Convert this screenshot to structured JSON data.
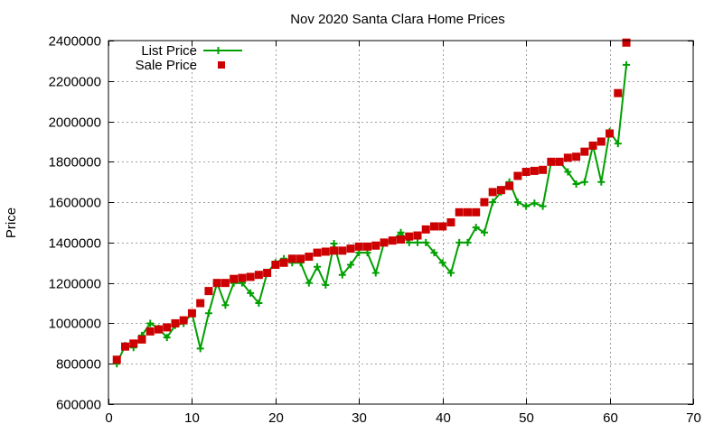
{
  "chart_data": {
    "type": "line",
    "title": "Nov 2020 Santa Clara Home Prices",
    "xlabel": "",
    "ylabel": "Price",
    "xlim": [
      0,
      70
    ],
    "ylim": [
      600000,
      2400000
    ],
    "xticks": [
      0,
      10,
      20,
      30,
      40,
      50,
      60,
      70
    ],
    "yticks": [
      600000,
      800000,
      1000000,
      1200000,
      1400000,
      1600000,
      1800000,
      2000000,
      2200000,
      2400000
    ],
    "grid": true,
    "legend_position": "top-left",
    "x": [
      1,
      2,
      3,
      4,
      5,
      6,
      7,
      8,
      9,
      10,
      11,
      12,
      13,
      14,
      15,
      16,
      17,
      18,
      19,
      20,
      21,
      22,
      23,
      24,
      25,
      26,
      27,
      28,
      29,
      30,
      31,
      32,
      33,
      34,
      35,
      36,
      37,
      38,
      39,
      40,
      41,
      42,
      43,
      44,
      45,
      46,
      47,
      48,
      49,
      50,
      51,
      52,
      53,
      54,
      55,
      56,
      57,
      58,
      59,
      60,
      61,
      62
    ],
    "series": [
      {
        "name": "List Price",
        "style": "linespoints",
        "color": "#00a000",
        "values": [
          800000,
          890000,
          880000,
          940000,
          1000000,
          975000,
          930000,
          990000,
          1000000,
          1050000,
          875000,
          1050000,
          1200000,
          1090000,
          1200000,
          1200000,
          1150000,
          1100000,
          1250000,
          1300000,
          1320000,
          1300000,
          1300000,
          1200000,
          1280000,
          1190000,
          1395000,
          1240000,
          1290000,
          1350000,
          1350000,
          1250000,
          1400000,
          1410000,
          1450000,
          1400000,
          1400000,
          1400000,
          1350000,
          1300000,
          1250000,
          1400000,
          1400000,
          1475000,
          1450000,
          1600000,
          1650000,
          1700000,
          1600000,
          1580000,
          1595000,
          1580000,
          1800000,
          1800000,
          1750000,
          1690000,
          1700000,
          1880000,
          1700000,
          1950000,
          1890000,
          2280000
        ]
      },
      {
        "name": "Sale Price",
        "style": "points",
        "color": "#cc0000",
        "values": [
          820000,
          885000,
          900000,
          920000,
          960000,
          970000,
          980000,
          1000000,
          1015000,
          1050000,
          1100000,
          1160000,
          1200000,
          1200000,
          1220000,
          1225000,
          1230000,
          1240000,
          1250000,
          1290000,
          1300000,
          1320000,
          1320000,
          1330000,
          1350000,
          1355000,
          1360000,
          1360000,
          1370000,
          1380000,
          1380000,
          1385000,
          1400000,
          1410000,
          1415000,
          1430000,
          1435000,
          1465000,
          1480000,
          1480000,
          1500000,
          1550000,
          1550000,
          1550000,
          1600000,
          1650000,
          1660000,
          1680000,
          1730000,
          1750000,
          1755000,
          1760000,
          1800000,
          1800000,
          1820000,
          1825000,
          1850000,
          1880000,
          1900000,
          1940000,
          2140000,
          2390000
        ]
      }
    ]
  }
}
